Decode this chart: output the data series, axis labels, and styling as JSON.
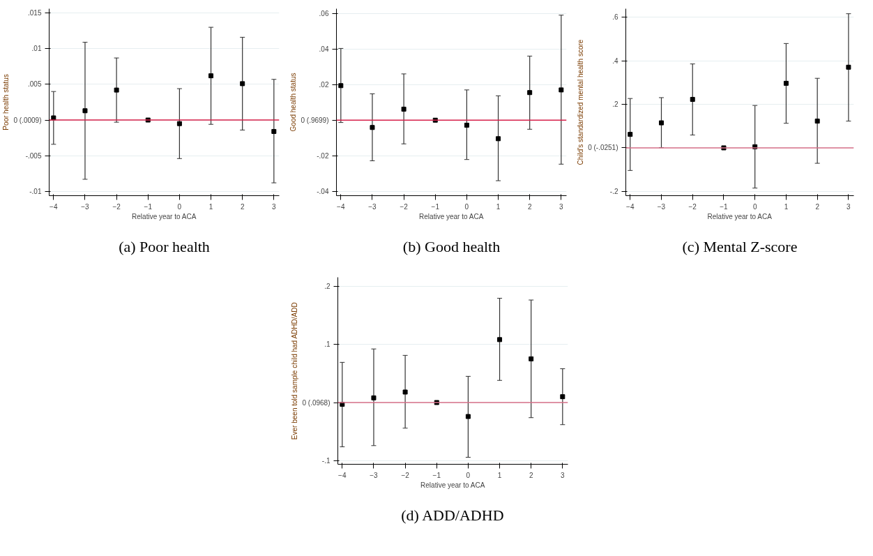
{
  "chart_data": [
    {
      "type": "scatter",
      "ylabel": "Poor health status",
      "xlabel": "Relative year to ACA",
      "annotations": [
        "(a) Poor health"
      ],
      "x": [
        -4,
        -3,
        -2,
        -1,
        0,
        1,
        2,
        3
      ],
      "xlim": [
        -4.14,
        3.17
      ],
      "xticks": [
        -4,
        -3,
        -2,
        -1,
        0,
        1,
        2,
        3
      ],
      "ylim": [
        -0.0106,
        0.0156
      ],
      "yticks": [
        {
          "value": -0.01,
          "label": "-.01"
        },
        {
          "value": -0.005,
          "label": "-.005"
        },
        {
          "value": 0,
          "label": "0 (.0009)"
        },
        {
          "value": 0.005,
          "label": ".005"
        },
        {
          "value": 0.01,
          "label": ".01"
        },
        {
          "value": 0.015,
          "label": ".015"
        }
      ],
      "grid": "y",
      "marker": "square",
      "series": [
        {
          "color": "#000000",
          "values": [
            0.0003,
            0.0013,
            0.0042,
            0,
            -0.0005,
            0.0062,
            0.0051,
            -0.0016
          ],
          "errors": [
            [
              -0.0034,
              0.004
            ],
            [
              -0.0083,
              0.0109
            ],
            [
              -0.0003,
              0.0087
            ],
            null,
            [
              -0.0054,
              0.0044
            ],
            [
              -0.0006,
              0.013
            ],
            [
              -0.0014,
              0.0116
            ],
            [
              -0.0088,
              0.0057
            ]
          ]
        }
      ],
      "ref_lines": [
        {
          "axis": "y",
          "value": 0,
          "color": "#d6204a"
        }
      ]
    },
    {
      "type": "scatter",
      "ylabel": "Good health status",
      "xlabel": "Relative year to ACA",
      "annotations": [
        "(b) Good health"
      ],
      "x": [
        -4,
        -3,
        -2,
        -1,
        0,
        1,
        2,
        3
      ],
      "xlim": [
        -4.14,
        3.17
      ],
      "xticks": [
        -4,
        -3,
        -2,
        -1,
        0,
        1,
        2,
        3
      ],
      "ylim": [
        -0.0424,
        0.0626
      ],
      "yticks": [
        {
          "value": -0.04,
          "label": "-.04"
        },
        {
          "value": -0.02,
          "label": "-.02"
        },
        {
          "value": 0,
          "label": "0 (.9699)"
        },
        {
          "value": 0.02,
          "label": ".02"
        },
        {
          "value": 0.04,
          "label": ".04"
        },
        {
          "value": 0.06,
          "label": ".06"
        }
      ],
      "grid": "y",
      "marker": "square",
      "series": [
        {
          "color": "#000000",
          "values": [
            0.0194,
            -0.0041,
            0.0062,
            0,
            -0.0028,
            -0.0104,
            0.0155,
            0.017
          ],
          "errors": [
            [
              -0.0013,
              0.0403
            ],
            [
              -0.0228,
              0.0148
            ],
            [
              -0.0133,
              0.026
            ],
            null,
            [
              -0.0221,
              0.017
            ],
            [
              -0.034,
              0.0137
            ],
            [
              -0.0051,
              0.036
            ],
            [
              -0.0247,
              0.059
            ]
          ]
        }
      ],
      "ref_lines": [
        {
          "axis": "y",
          "value": 0,
          "color": "#d6204a"
        }
      ]
    },
    {
      "type": "scatter",
      "ylabel": "Child's standardized mental health score",
      "xlabel": "Relative year to ACA",
      "annotations": [
        "(c) Mental Z-score"
      ],
      "x": [
        -4,
        -3,
        -2,
        -1,
        0,
        1,
        2,
        3
      ],
      "xlim": [
        -4.14,
        3.17
      ],
      "xticks": [
        -4,
        -3,
        -2,
        -1,
        0,
        1,
        2,
        3
      ],
      "ylim": [
        -0.22,
        0.64
      ],
      "yticks": [
        {
          "value": -0.2,
          "label": "-.2"
        },
        {
          "value": 0,
          "label": "0 (-.0251)"
        },
        {
          "value": 0.2,
          "label": ".2"
        },
        {
          "value": 0.4,
          "label": ".4"
        },
        {
          "value": 0.6,
          "label": ".6"
        }
      ],
      "grid": "y",
      "marker": "square",
      "series": [
        {
          "color": "#000000",
          "values": [
            0.062,
            0.115,
            0.223,
            0,
            0.005,
            0.297,
            0.123,
            0.371
          ],
          "errors": [
            [
              -0.104,
              0.227
            ],
            [
              0.001,
              0.231
            ],
            [
              0.059,
              0.386
            ],
            null,
            [
              -0.185,
              0.195
            ],
            [
              0.113,
              0.48
            ],
            [
              -0.071,
              0.32
            ],
            [
              0.123,
              0.617
            ]
          ]
        }
      ],
      "ref_lines": [
        {
          "axis": "y",
          "value": 0,
          "color": "#d9708a"
        }
      ]
    },
    {
      "type": "scatter",
      "ylabel": "Ever been told sample child had ADHD/ADD",
      "xlabel": "Relative year to ACA",
      "annotations": [
        "(d) ADD/ADHD"
      ],
      "x": [
        -4,
        -3,
        -2,
        -1,
        0,
        1,
        2,
        3
      ],
      "xlim": [
        -4.14,
        3.17
      ],
      "xticks": [
        -4,
        -3,
        -2,
        -1,
        0,
        1,
        2,
        3
      ],
      "ylim": [
        -0.106,
        0.215
      ],
      "yticks": [
        {
          "value": -0.1,
          "label": "-.1"
        },
        {
          "value": 0,
          "label": "0 (.0968)"
        },
        {
          "value": 0.1,
          "label": ".1"
        },
        {
          "value": 0.2,
          "label": ".2"
        }
      ],
      "grid": "y",
      "marker": "square",
      "series": [
        {
          "color": "#000000",
          "values": [
            -0.003,
            0.008,
            0.018,
            0,
            -0.024,
            0.108,
            0.075,
            0.01
          ],
          "errors": [
            [
              -0.076,
              0.069
            ],
            [
              -0.074,
              0.092
            ],
            [
              -0.044,
              0.081
            ],
            null,
            [
              -0.094,
              0.045
            ],
            [
              0.038,
              0.179
            ],
            [
              -0.026,
              0.176
            ],
            [
              -0.038,
              0.058
            ]
          ]
        }
      ],
      "ref_lines": [
        {
          "axis": "y",
          "value": 0,
          "color": "#d9708a"
        }
      ]
    }
  ]
}
